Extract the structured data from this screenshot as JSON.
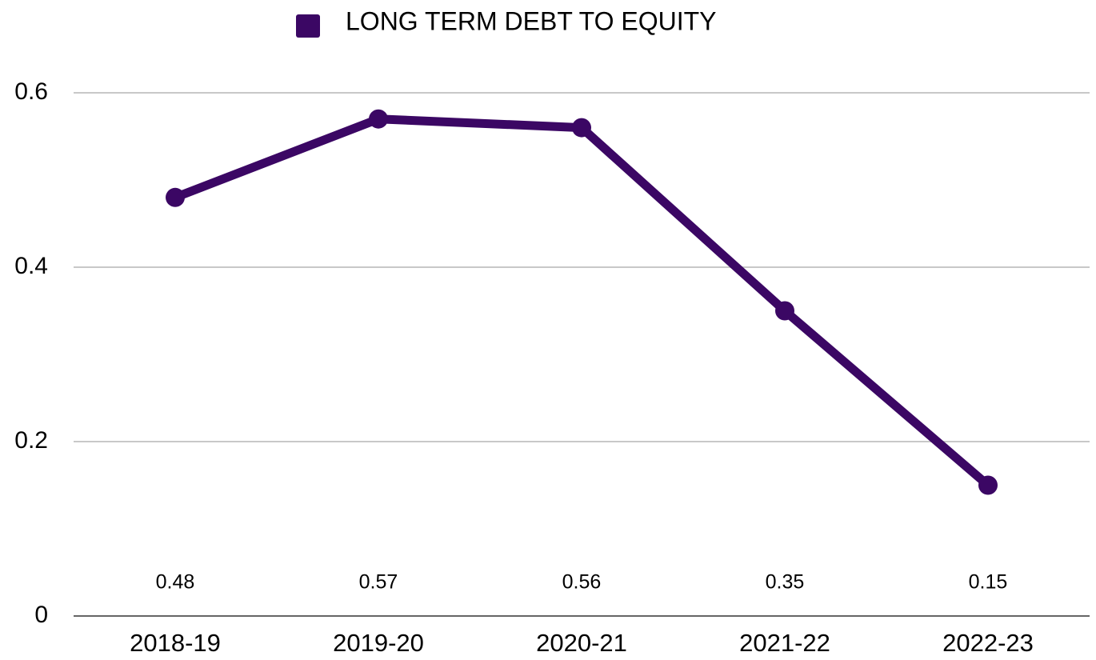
{
  "chart_data": {
    "type": "line",
    "categories": [
      "2018-19",
      "2019-20",
      "2020-21",
      "2021-22",
      "2022-23"
    ],
    "series": [
      {
        "name": "LONG TERM DEBT TO EQUITY",
        "color": "#3b0764",
        "values": [
          0.48,
          0.57,
          0.56,
          0.35,
          0.15
        ]
      }
    ],
    "ylim": [
      0,
      0.6
    ],
    "yticks": [
      0,
      0.2,
      0.4,
      0.6
    ],
    "grid": true,
    "legend": "top"
  }
}
